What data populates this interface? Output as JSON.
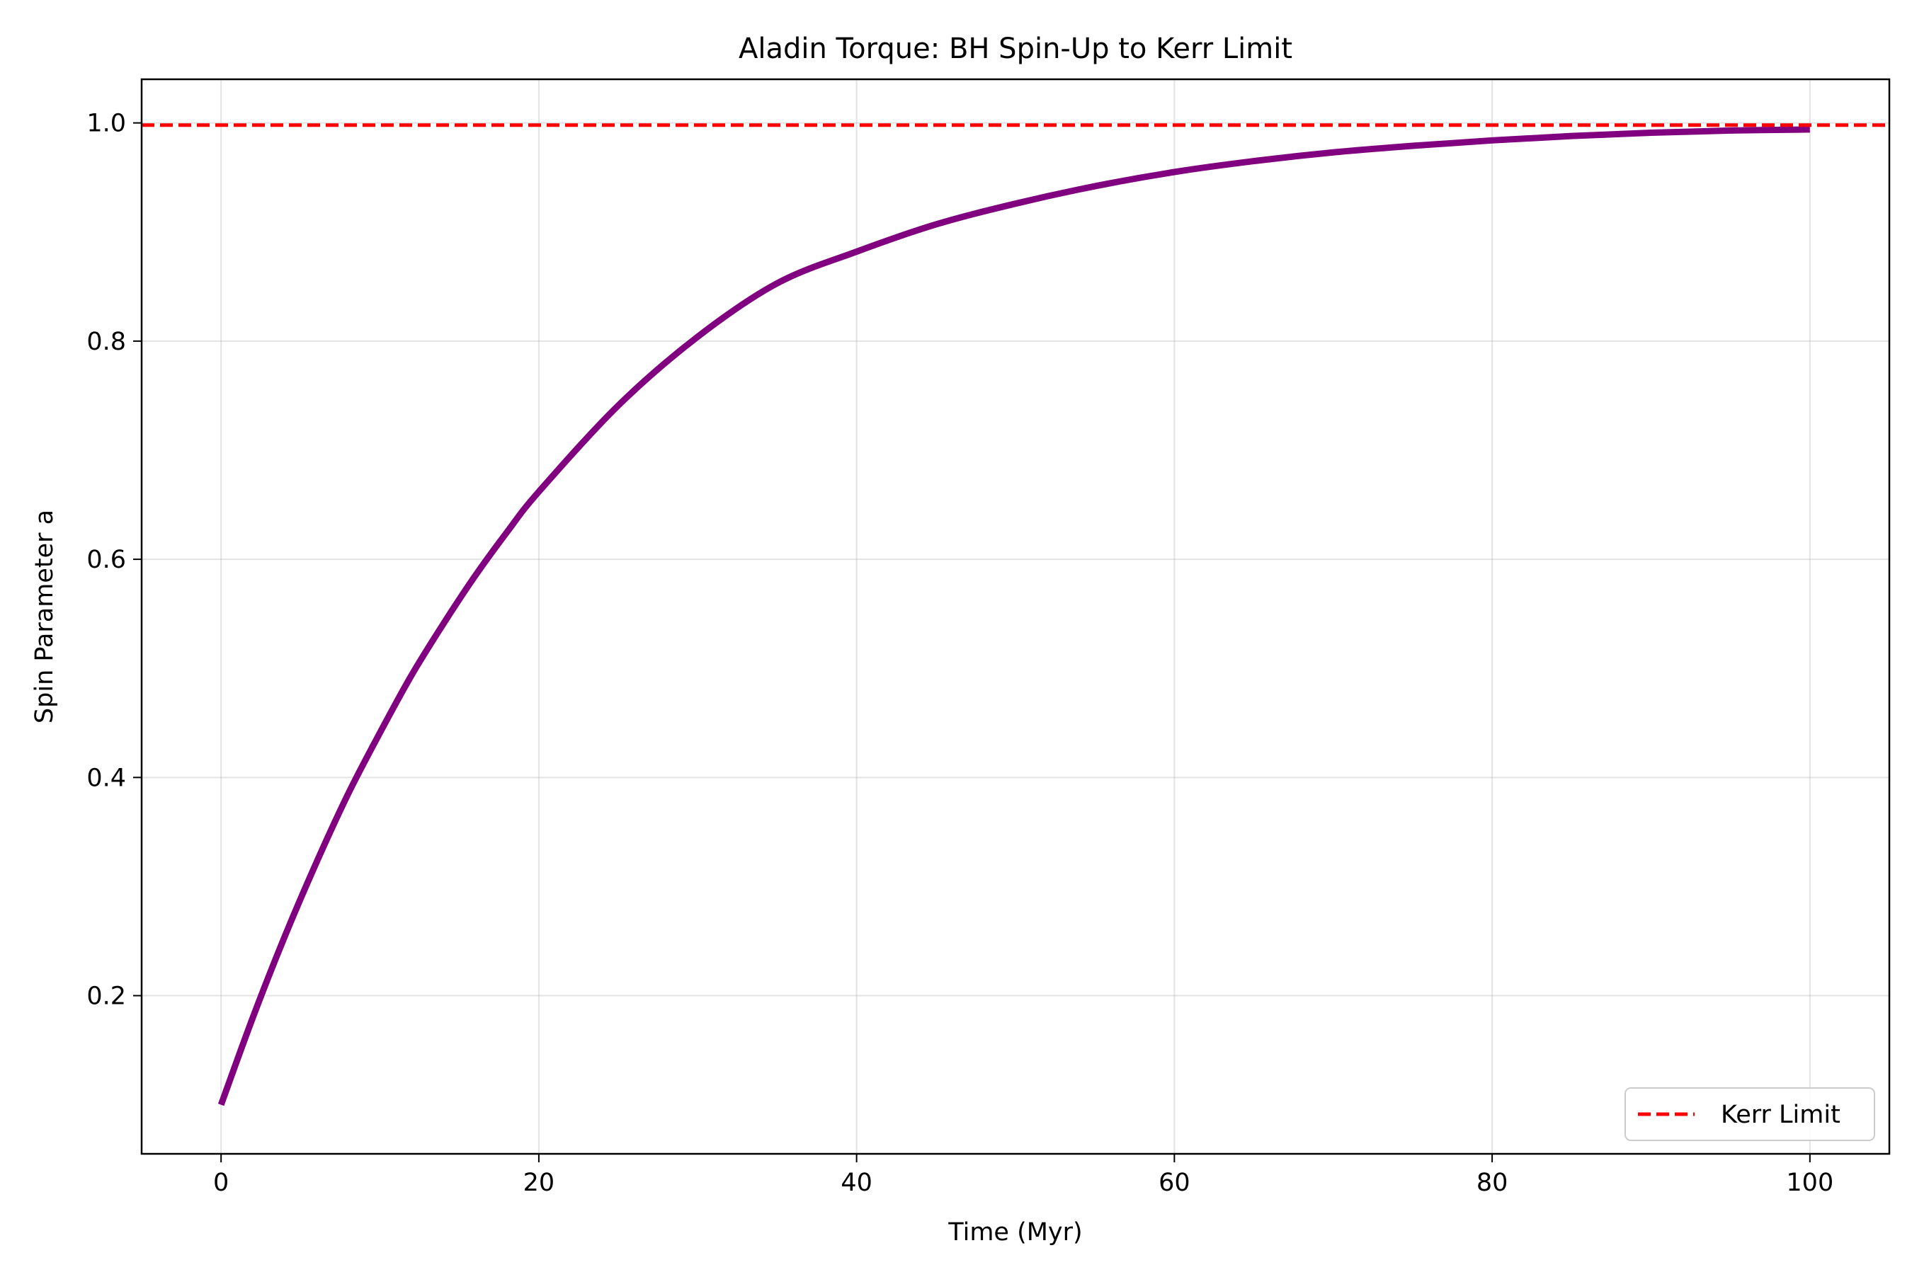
{
  "chart_data": {
    "type": "line",
    "title": "Aladin Torque: BH Spin-Up to Kerr Limit",
    "xlabel": "Time (Myr)",
    "ylabel": "Spin Parameter a",
    "xlim": [
      -5,
      105
    ],
    "ylim": [
      0.055,
      1.04
    ],
    "xticks": [
      0,
      20,
      40,
      60,
      80,
      100
    ],
    "yticks": [
      0.2,
      0.4,
      0.6,
      0.8,
      1.0
    ],
    "xtick_labels": [
      "0",
      "20",
      "40",
      "60",
      "80",
      "100"
    ],
    "ytick_labels": [
      "0.2",
      "0.4",
      "0.6",
      "0.8",
      "1.0"
    ],
    "grid": true,
    "legend_position": "lower-right",
    "series": [
      {
        "kind": "line",
        "color": "#800080",
        "x": [
          0,
          2,
          4,
          6,
          8,
          10,
          12,
          14,
          16,
          18,
          20,
          25,
          30,
          35,
          40,
          45,
          50,
          55,
          60,
          65,
          70,
          75,
          80,
          85,
          90,
          95,
          100
        ],
        "y": [
          0.1,
          0.18,
          0.254,
          0.322,
          0.385,
          0.441,
          0.494,
          0.541,
          0.585,
          0.625,
          0.662,
          0.741,
          0.804,
          0.853,
          0.882,
          0.907,
          0.926,
          0.942,
          0.955,
          0.965,
          0.973,
          0.979,
          0.984,
          0.988,
          0.991,
          0.993,
          0.994
        ]
      },
      {
        "kind": "hline",
        "name": "Kerr Limit",
        "color": "#ff0000",
        "y": 0.998
      }
    ]
  }
}
